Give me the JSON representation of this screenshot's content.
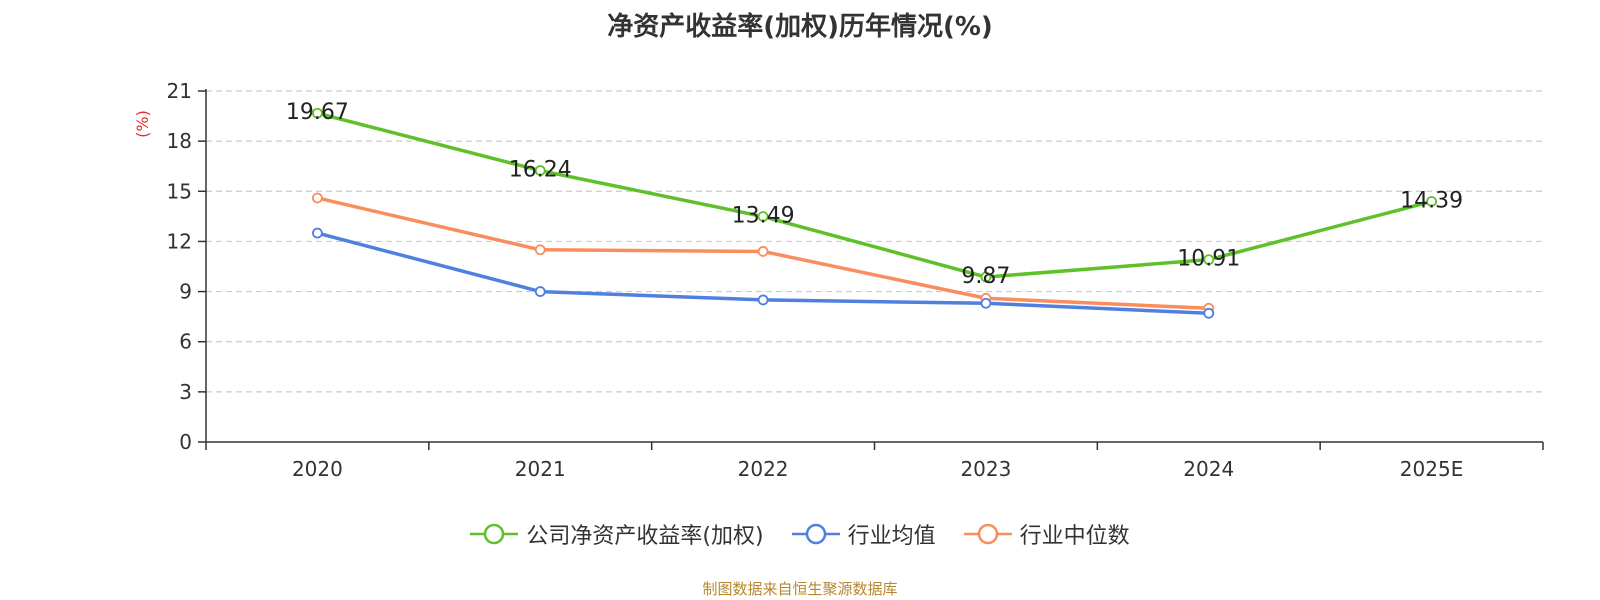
{
  "chart_data": {
    "type": "line",
    "title": "净资产收益率(加权)历年情况(%)",
    "ylabel": "(%)",
    "xlabel": "",
    "ylim": [
      0,
      21
    ],
    "yticks": [
      0,
      3,
      6,
      9,
      12,
      15,
      18,
      21
    ],
    "categories": [
      "2020",
      "2021",
      "2022",
      "2023",
      "2024",
      "2025E"
    ],
    "grid": true,
    "legend_position": "bottom",
    "series": [
      {
        "name": "公司净资产收益率(加权)",
        "color": "#5ec12a",
        "values": [
          19.67,
          16.24,
          13.49,
          9.87,
          10.91,
          14.39
        ],
        "labels": [
          "19.67",
          "16.24",
          "13.49",
          "9.87",
          "10.91",
          "14.39"
        ]
      },
      {
        "name": "行业均值",
        "color": "#4f80e0",
        "values": [
          12.5,
          9.0,
          8.5,
          8.3,
          7.7,
          null
        ]
      },
      {
        "name": "行业中位数",
        "color": "#f98d5d",
        "values": [
          14.6,
          11.5,
          11.4,
          8.6,
          8.0,
          null
        ]
      }
    ]
  },
  "source_note": "制图数据来自恒生聚源数据库",
  "colors": {
    "axis": "#333333",
    "grid": "#cccccc",
    "ylabel": "#e03030",
    "source": "#b8862f"
  }
}
